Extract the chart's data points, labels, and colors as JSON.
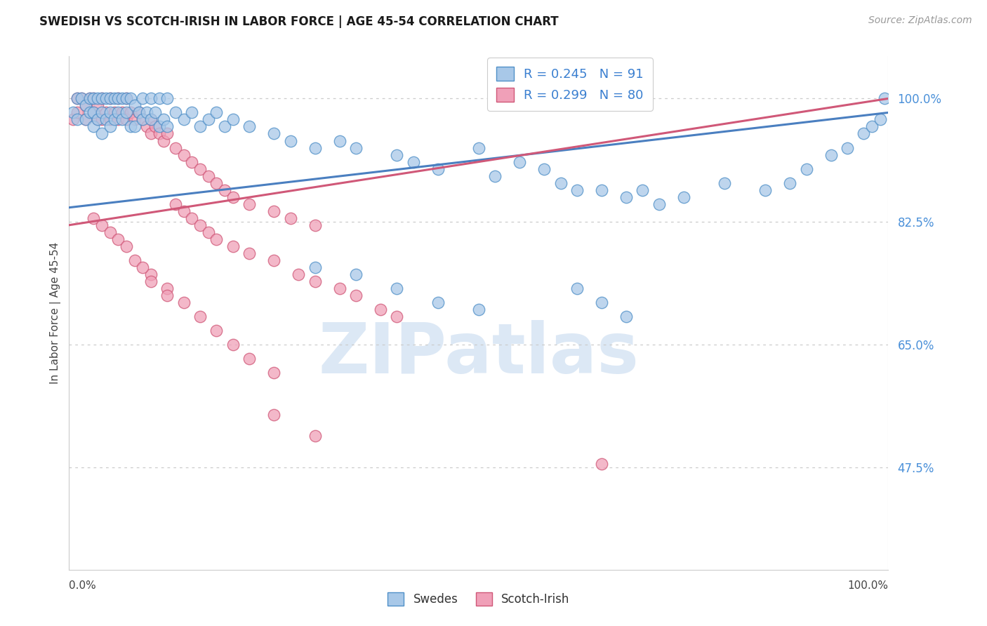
{
  "title": "SWEDISH VS SCOTCH-IRISH IN LABOR FORCE | AGE 45-54 CORRELATION CHART",
  "source": "Source: ZipAtlas.com",
  "ylabel": "In Labor Force | Age 45-54",
  "yticks": [
    0.475,
    0.65,
    0.825,
    1.0
  ],
  "ytick_labels": [
    "47.5%",
    "65.0%",
    "82.5%",
    "100.0%"
  ],
  "swedes_legend": "Swedes",
  "scotch_legend": "Scotch-Irish",
  "blue_fill": "#a8c8e8",
  "blue_edge": "#5090c8",
  "pink_fill": "#f0a0b8",
  "pink_edge": "#d05878",
  "blue_line": "#4a7fc0",
  "pink_line": "#d05878",
  "blue_line_start_y": 0.845,
  "blue_line_end_y": 0.98,
  "pink_line_start_y": 0.82,
  "pink_line_end_y": 1.0,
  "marker_size": 140,
  "watermark": "ZIPatlas",
  "watermark_color": "#dce8f5",
  "R_blue": 0.245,
  "N_blue": 91,
  "R_pink": 0.299,
  "N_pink": 80,
  "ylim_min": 0.33,
  "ylim_max": 1.06,
  "xlim_min": 0.0,
  "xlim_max": 1.0,
  "swedes_x": [
    0.005,
    0.01,
    0.01,
    0.015,
    0.02,
    0.02,
    0.025,
    0.025,
    0.03,
    0.03,
    0.03,
    0.035,
    0.035,
    0.04,
    0.04,
    0.04,
    0.045,
    0.045,
    0.05,
    0.05,
    0.05,
    0.055,
    0.055,
    0.06,
    0.06,
    0.065,
    0.065,
    0.07,
    0.07,
    0.075,
    0.075,
    0.08,
    0.08,
    0.085,
    0.09,
    0.09,
    0.095,
    0.1,
    0.1,
    0.105,
    0.11,
    0.11,
    0.115,
    0.12,
    0.12,
    0.13,
    0.14,
    0.15,
    0.16,
    0.17,
    0.18,
    0.19,
    0.2,
    0.22,
    0.25,
    0.27,
    0.3,
    0.33,
    0.35,
    0.4,
    0.42,
    0.45,
    0.5,
    0.52,
    0.55,
    0.58,
    0.6,
    0.62,
    0.65,
    0.68,
    0.7,
    0.72,
    0.75,
    0.8,
    0.85,
    0.88,
    0.9,
    0.93,
    0.95,
    0.97,
    0.98,
    0.99,
    0.995,
    0.62,
    0.65,
    0.68,
    0.3,
    0.35,
    0.4,
    0.45,
    0.5
  ],
  "swedes_y": [
    0.98,
    1.0,
    0.97,
    1.0,
    0.99,
    0.97,
    1.0,
    0.98,
    1.0,
    0.98,
    0.96,
    1.0,
    0.97,
    1.0,
    0.98,
    0.95,
    1.0,
    0.97,
    1.0,
    0.98,
    0.96,
    1.0,
    0.97,
    1.0,
    0.98,
    1.0,
    0.97,
    1.0,
    0.98,
    1.0,
    0.96,
    0.99,
    0.96,
    0.98,
    1.0,
    0.97,
    0.98,
    1.0,
    0.97,
    0.98,
    1.0,
    0.96,
    0.97,
    1.0,
    0.96,
    0.98,
    0.97,
    0.98,
    0.96,
    0.97,
    0.98,
    0.96,
    0.97,
    0.96,
    0.95,
    0.94,
    0.93,
    0.94,
    0.93,
    0.92,
    0.91,
    0.9,
    0.93,
    0.89,
    0.91,
    0.9,
    0.88,
    0.87,
    0.87,
    0.86,
    0.87,
    0.85,
    0.86,
    0.88,
    0.87,
    0.88,
    0.9,
    0.92,
    0.93,
    0.95,
    0.96,
    0.97,
    1.0,
    0.73,
    0.71,
    0.69,
    0.76,
    0.75,
    0.73,
    0.71,
    0.7
  ],
  "scotch_x": [
    0.005,
    0.01,
    0.01,
    0.015,
    0.02,
    0.02,
    0.025,
    0.03,
    0.03,
    0.035,
    0.035,
    0.04,
    0.04,
    0.045,
    0.05,
    0.05,
    0.055,
    0.06,
    0.06,
    0.065,
    0.07,
    0.07,
    0.075,
    0.08,
    0.085,
    0.09,
    0.095,
    0.1,
    0.1,
    0.105,
    0.11,
    0.115,
    0.12,
    0.13,
    0.14,
    0.15,
    0.16,
    0.17,
    0.18,
    0.19,
    0.2,
    0.22,
    0.25,
    0.27,
    0.3,
    0.13,
    0.14,
    0.15,
    0.16,
    0.17,
    0.18,
    0.2,
    0.22,
    0.25,
    0.28,
    0.3,
    0.33,
    0.35,
    0.38,
    0.4,
    0.1,
    0.12,
    0.14,
    0.16,
    0.18,
    0.2,
    0.22,
    0.25,
    0.03,
    0.04,
    0.05,
    0.06,
    0.07,
    0.08,
    0.09,
    0.1,
    0.12,
    0.65,
    0.25,
    0.3
  ],
  "scotch_y": [
    0.97,
    1.0,
    0.98,
    1.0,
    0.99,
    0.97,
    1.0,
    0.98,
    1.0,
    0.97,
    0.99,
    1.0,
    0.97,
    0.98,
    1.0,
    0.97,
    0.98,
    1.0,
    0.97,
    0.98,
    1.0,
    0.97,
    0.98,
    0.97,
    0.98,
    0.97,
    0.96,
    0.97,
    0.95,
    0.96,
    0.95,
    0.94,
    0.95,
    0.93,
    0.92,
    0.91,
    0.9,
    0.89,
    0.88,
    0.87,
    0.86,
    0.85,
    0.84,
    0.83,
    0.82,
    0.85,
    0.84,
    0.83,
    0.82,
    0.81,
    0.8,
    0.79,
    0.78,
    0.77,
    0.75,
    0.74,
    0.73,
    0.72,
    0.7,
    0.69,
    0.75,
    0.73,
    0.71,
    0.69,
    0.67,
    0.65,
    0.63,
    0.61,
    0.83,
    0.82,
    0.81,
    0.8,
    0.79,
    0.77,
    0.76,
    0.74,
    0.72,
    0.48,
    0.55,
    0.52
  ]
}
